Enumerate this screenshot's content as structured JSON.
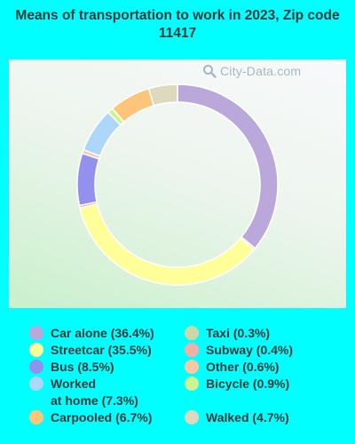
{
  "title": "Means of transportation to work in 2023, Zip code 11417",
  "watermark": "City-Data.com",
  "watermark_icon": "magnifier-icon",
  "colors": {
    "background": "#00FFFF"
  },
  "chart_data": {
    "type": "pie",
    "donut": true,
    "legend_position": "bottom",
    "slices": [
      {
        "label": "Car alone",
        "value": 36.4,
        "legend": "Car alone (36.4%)",
        "color": "#bba8db"
      },
      {
        "label": "Taxi",
        "value": 0.3,
        "legend": "Taxi (0.3%)",
        "color": "#cdd8a8"
      },
      {
        "label": "Streetcar",
        "value": 35.5,
        "legend": "Streetcar (35.5%)",
        "color": "#ffff99"
      },
      {
        "label": "Subway",
        "value": 0.4,
        "legend": "Subway (0.4%)",
        "color": "#f0b0a8"
      },
      {
        "label": "Bus",
        "value": 8.5,
        "legend": "Bus (8.5%)",
        "color": "#9490ee"
      },
      {
        "label": "Other",
        "value": 0.6,
        "legend": "Other (0.6%)",
        "color": "#fcc8a4"
      },
      {
        "label": "Worked at home",
        "value": 7.3,
        "legend": "Worked\nat home (7.3%)",
        "color": "#acd6fa"
      },
      {
        "label": "Bicycle",
        "value": 0.9,
        "legend": "Bicycle (0.9%)",
        "color": "#ccf592"
      },
      {
        "label": "Carpooled",
        "value": 6.7,
        "legend": "Carpooled (6.7%)",
        "color": "#fdc57a"
      },
      {
        "label": "Walked",
        "value": 4.7,
        "legend": "Walked (4.7%)",
        "color": "#ddd8be"
      }
    ]
  }
}
